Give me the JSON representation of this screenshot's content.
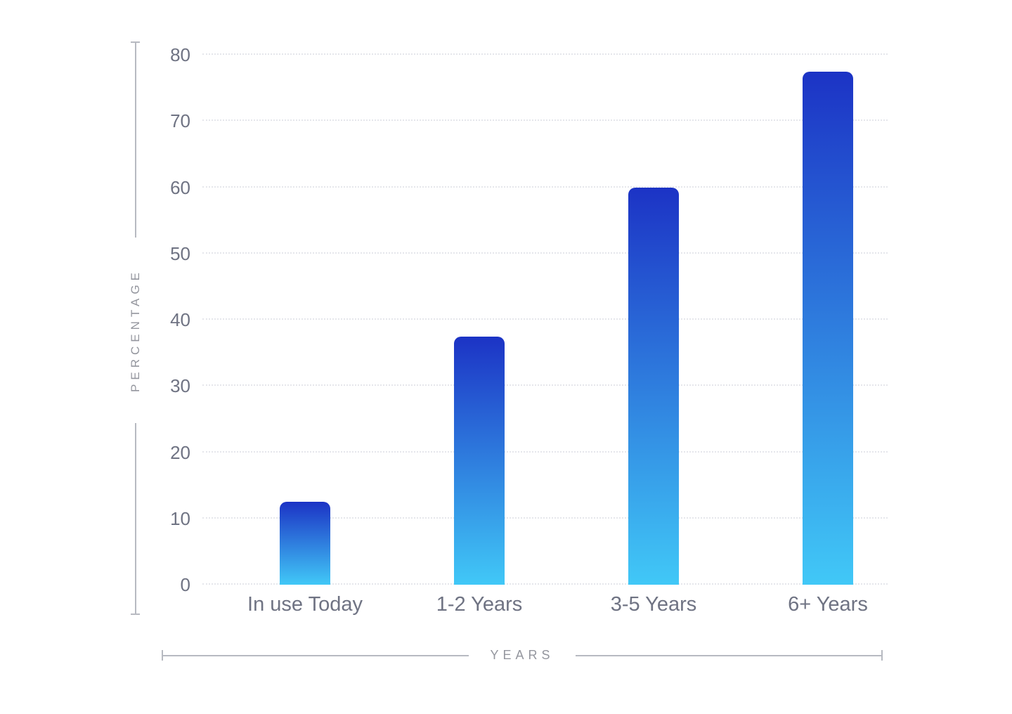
{
  "chart_data": {
    "type": "bar",
    "title": "",
    "categories": [
      "In use Today",
      "1-2 Years",
      "3-5 Years",
      "6+ Years"
    ],
    "values": [
      12.5,
      37.5,
      60,
      77.5
    ],
    "xlabel": "YEARS",
    "ylabel": "PERCENTAGE",
    "ylim": [
      0,
      80
    ],
    "yticks": [
      0,
      10,
      20,
      30,
      40,
      50,
      60,
      70,
      80
    ],
    "grid": "horizontal-dotted",
    "legend": "none",
    "bar_gradient": {
      "top": "#1c33c5",
      "bottom": "#41c8f7"
    }
  },
  "colors": {
    "background": "#ffffff",
    "tick_label": "#6f7383",
    "category_label": "#6f7383",
    "axis_title": "#94969e",
    "axis_line": "#b7bac1",
    "gridline": "#e5e6eb"
  }
}
